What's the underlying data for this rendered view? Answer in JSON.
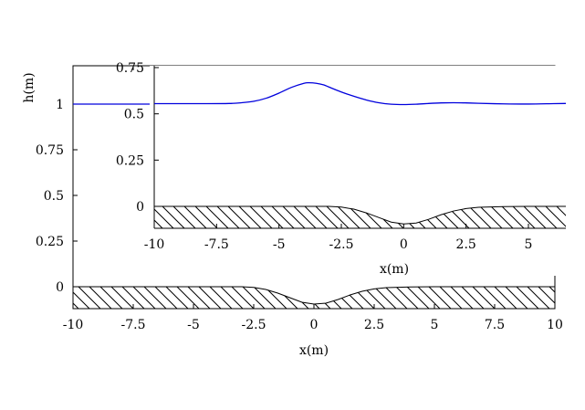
{
  "chart_data": [
    {
      "id": "main",
      "type": "line",
      "xlabel": "x(m)",
      "ylabel": "h(m)",
      "xlim": [
        -10,
        10
      ],
      "ylim": [
        -0.12,
        1.2
      ],
      "xticks": [
        "-10",
        "-7.5",
        "-5",
        "-2.5",
        "0",
        "2.5",
        "5",
        "7.5",
        "10"
      ],
      "yticks": [
        "0",
        "0.25",
        "0.5",
        "0.75",
        "1"
      ],
      "series": [
        {
          "color": "#0000dd",
          "x": [
            -10,
            -8,
            -6,
            -5,
            -4,
            -3,
            -2,
            -1,
            0,
            1,
            2,
            3,
            4,
            5,
            6,
            7,
            8,
            9,
            10
          ],
          "y": [
            1.0,
            1.0,
            1.0,
            1.0,
            1.0,
            1.0,
            1.0,
            1.0,
            1.0,
            1.0,
            1.0,
            1.0,
            1.0,
            1.0,
            1.0,
            1.0,
            1.0,
            1.0,
            1.0
          ]
        }
      ],
      "bottom": {
        "x": [
          -10,
          -3,
          -2.5,
          -2,
          -1.5,
          -1,
          -0.5,
          0,
          0.5,
          1,
          1.5,
          2,
          2.5,
          3,
          4,
          5,
          10
        ],
        "y": [
          0,
          0,
          -0.004,
          -0.015,
          -0.035,
          -0.06,
          -0.085,
          -0.095,
          -0.09,
          -0.07,
          -0.045,
          -0.025,
          -0.012,
          -0.005,
          -0.001,
          0,
          0
        ]
      }
    },
    {
      "id": "inset",
      "type": "line",
      "xlabel": "x(m)",
      "xlim": [
        -10,
        6.5
      ],
      "ylim": [
        -0.12,
        0.75
      ],
      "xticks": [
        "-10",
        "-7.5",
        "-5",
        "-2.5",
        "0",
        "2.5",
        "5"
      ],
      "yticks": [
        "0",
        "0.25",
        "0.5",
        "0.75"
      ],
      "series": [
        {
          "color": "#0000dd",
          "x": [
            -10,
            -8,
            -7,
            -6.5,
            -6,
            -5.5,
            -5,
            -4.5,
            -4,
            -3.8,
            -3.5,
            -3.2,
            -3,
            -2.5,
            -2,
            -1.5,
            -1,
            -0.5,
            0,
            0.5,
            1,
            1.5,
            2,
            2.5,
            3,
            4,
            5,
            6,
            6.5
          ],
          "y": [
            0.555,
            0.555,
            0.556,
            0.56,
            0.568,
            0.585,
            0.612,
            0.643,
            0.665,
            0.668,
            0.665,
            0.656,
            0.645,
            0.618,
            0.595,
            0.575,
            0.56,
            0.552,
            0.55,
            0.552,
            0.556,
            0.559,
            0.56,
            0.559,
            0.557,
            0.554,
            0.553,
            0.555,
            0.556
          ]
        }
      ],
      "bottom": {
        "x": [
          -10,
          -3,
          -2.5,
          -2,
          -1.5,
          -1,
          -0.5,
          0,
          0.5,
          1,
          1.5,
          2,
          2.5,
          3,
          4,
          5,
          6.5
        ],
        "y": [
          0,
          0,
          -0.004,
          -0.015,
          -0.035,
          -0.06,
          -0.085,
          -0.095,
          -0.09,
          -0.07,
          -0.045,
          -0.025,
          -0.012,
          -0.005,
          -0.001,
          0,
          0
        ]
      }
    }
  ]
}
